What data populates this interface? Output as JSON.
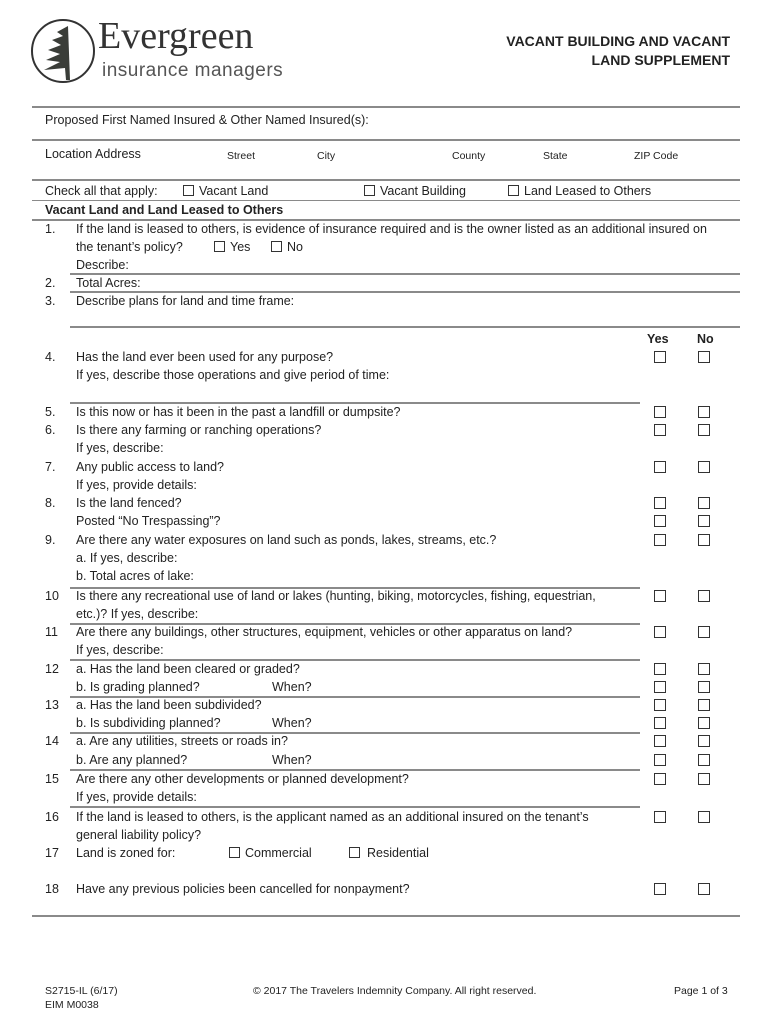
{
  "header": {
    "logo": {
      "name": "Evergreen",
      "tagline": "insurance managers"
    },
    "title_line1": "VACANT BUILDING AND VACANT",
    "title_line2": "LAND SUPPLEMENT"
  },
  "fields": {
    "named_insured_label": "Proposed First Named Insured & Other Named Insured(s):",
    "location_label": "Location Address",
    "street": "Street",
    "city": "City",
    "county": "County",
    "state": "State",
    "zip": "ZIP Code"
  },
  "check_all": {
    "label": "Check all that apply:",
    "options": [
      "Vacant Land",
      "Vacant Building",
      "Land Leased to Others"
    ]
  },
  "section_title": "Vacant Land and Land Leased to Others",
  "yes_no_header": {
    "yes": "Yes",
    "no": "No"
  },
  "inline_yes_no": {
    "yes": "Yes",
    "no": "No"
  },
  "zoning": {
    "commercial": "Commercial",
    "residential": "Residential"
  },
  "rows": [
    {
      "num": "1.",
      "text": "If the land is leased to others, is evidence of insurance required and is the owner listed as an additional insured on"
    },
    {
      "num": "",
      "text": "the tenant’s policy?"
    },
    {
      "num": "",
      "text": "Describe:"
    },
    {
      "num": "2.",
      "text": "Total Acres:"
    },
    {
      "num": "3.",
      "text": "Describe plans for land and time frame:"
    },
    {
      "num": "4.",
      "text": "Has the land ever been used for any purpose?",
      "cb": true
    },
    {
      "num": "",
      "text": "If yes, describe those operations and give period of time:"
    },
    {
      "num": "5.",
      "text": "Is this now or has it been in the past a landfill or dumpsite?",
      "cb": true
    },
    {
      "num": "6.",
      "text": "Is there any farming or ranching operations?",
      "cb": true
    },
    {
      "num": "",
      "text": "If yes, describe:"
    },
    {
      "num": "7.",
      "text": "Any public access to land?",
      "cb": true
    },
    {
      "num": "",
      "text": "If yes, provide details:"
    },
    {
      "num": "8.",
      "text": "Is the land fenced?",
      "cb": true
    },
    {
      "num": "",
      "text": "Posted “No Trespassing”?",
      "cb": true
    },
    {
      "num": "9.",
      "text": "Are there any water exposures on land such as ponds, lakes, streams, etc.?",
      "cb": true
    },
    {
      "num": "",
      "text": "a.  If yes, describe:"
    },
    {
      "num": "",
      "text": "b.  Total acres of lake:"
    },
    {
      "num": "10",
      "text": "Is there any recreational use of land or lakes (hunting, biking, motorcycles, fishing, equestrian,",
      "cb": true
    },
    {
      "num": "",
      "text": "etc.)?  If yes, describe:"
    },
    {
      "num": "11",
      "text": "Are there any buildings, other structures, equipment, vehicles or other apparatus on land?",
      "cb": true
    },
    {
      "num": "",
      "text": "If yes, describe:"
    },
    {
      "num": "12",
      "text": "a.    Has the land been cleared or graded?",
      "cb": true
    },
    {
      "num": "",
      "text": "b.    Is grading planned?",
      "when": "When?",
      "cb": true
    },
    {
      "num": "13",
      "text": "a.    Has the land been subdivided?",
      "cb": true
    },
    {
      "num": "",
      "text": "b.    Is subdividing planned?",
      "when": "When?",
      "cb": true
    },
    {
      "num": "14",
      "text": "a.    Are any utilities, streets or roads in?",
      "cb": true
    },
    {
      "num": "",
      "text": "b.    Are any planned?",
      "when": "When?",
      "cb": true
    },
    {
      "num": "15",
      "text": "Are there any other developments or planned development?",
      "cb": true
    },
    {
      "num": "",
      "text": "If yes, provide details:"
    },
    {
      "num": "16",
      "text": "If the land is leased to others, is the applicant named as an additional insured on the tenant’s",
      "cb": true
    },
    {
      "num": "",
      "text": "general liability policy?"
    },
    {
      "num": "17",
      "text": "Land is zoned for:"
    },
    {
      "num": "18",
      "text": "Have any previous policies been cancelled for nonpayment?",
      "cb": true
    }
  ],
  "footer": {
    "form_no": "S2715-IL (6/17)",
    "eim": "EIM M0038",
    "copyright": "© 2017 The Travelers Indemnity Company.  All right reserved.",
    "page": "Page 1 of 3"
  }
}
